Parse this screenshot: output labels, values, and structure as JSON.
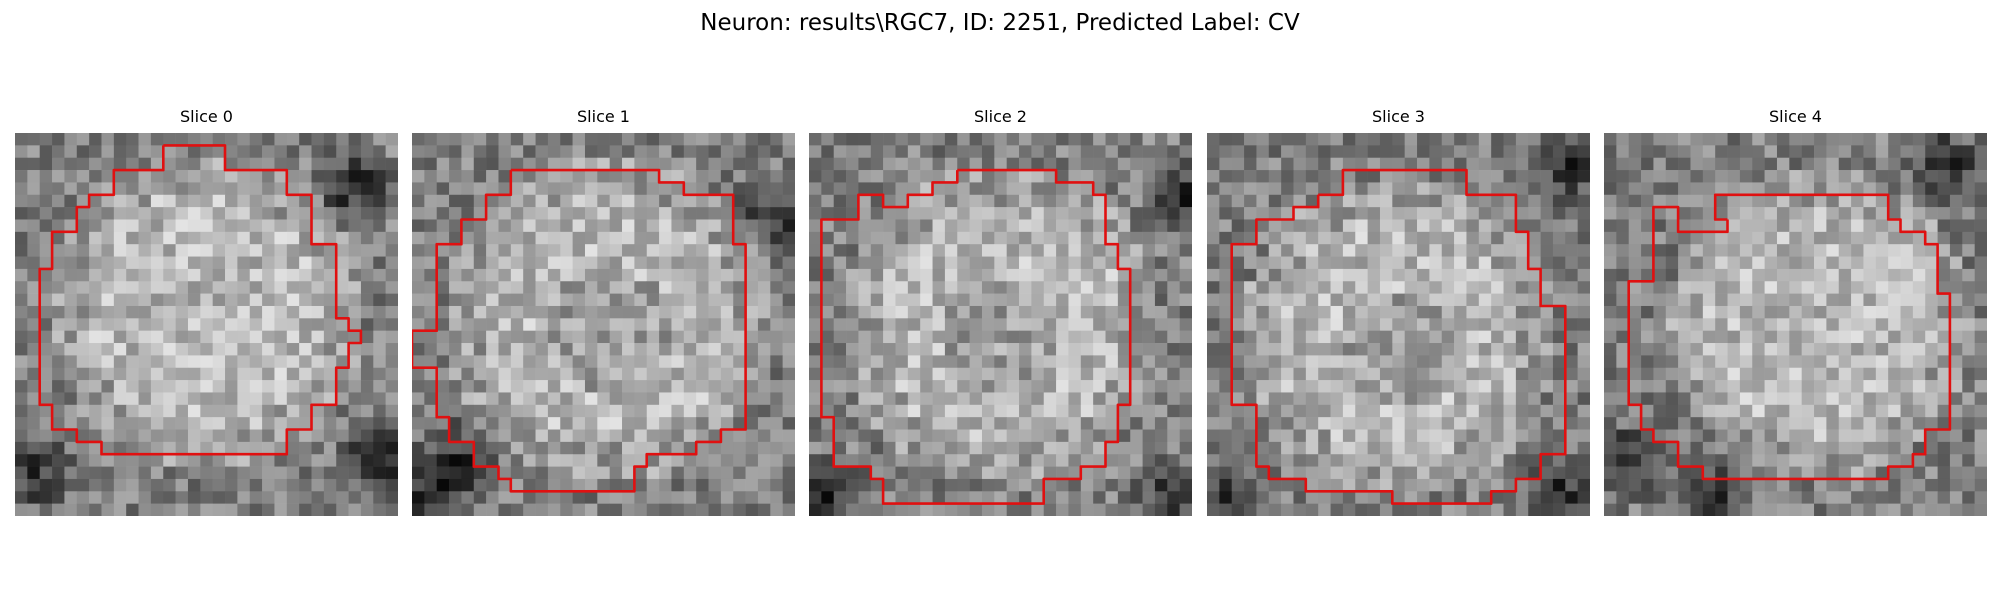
{
  "figure": {
    "title": "Neuron: results\\RGC7, ID: 2251, Predicted Label: CV"
  },
  "outline_color": "#e01010",
  "slices": [
    {
      "label": "Slice 0"
    },
    {
      "label": "Slice 1"
    },
    {
      "label": "Slice 2"
    },
    {
      "label": "Slice 3"
    },
    {
      "label": "Slice 4"
    }
  ]
}
